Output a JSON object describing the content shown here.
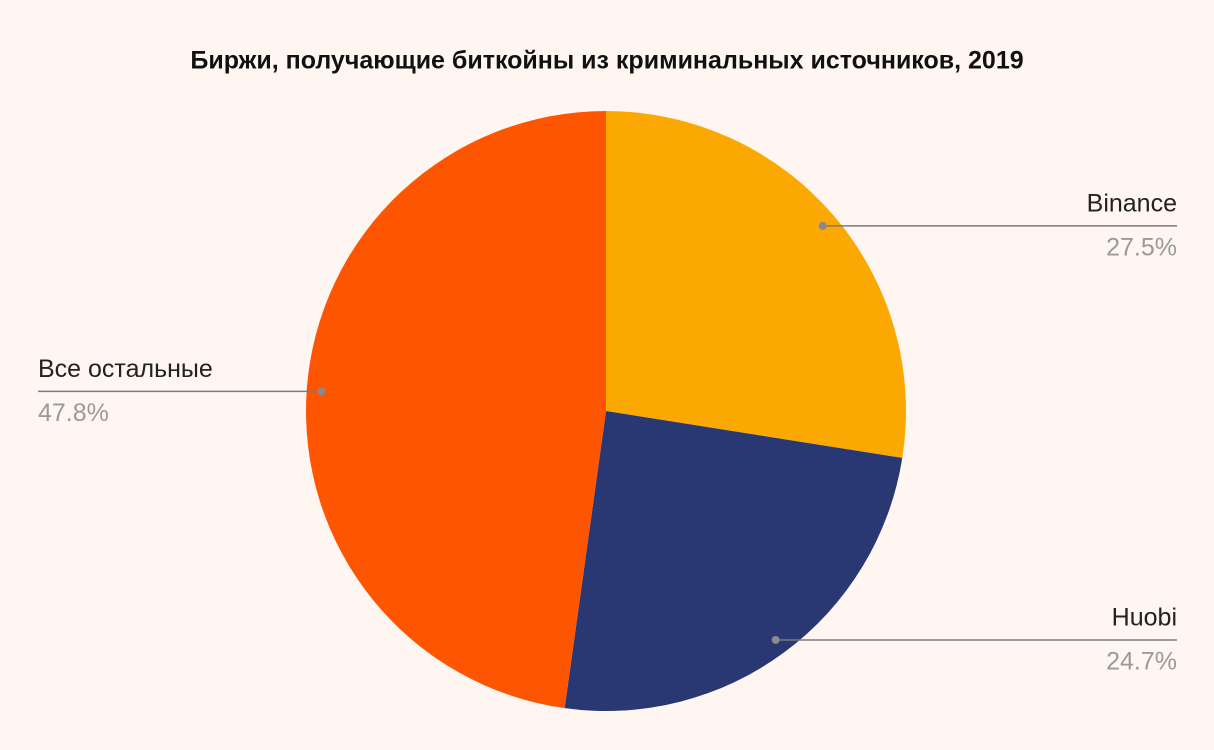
{
  "chart_data": {
    "type": "pie",
    "title": "Биржи, получающие биткойны из криминальных источников, 2019",
    "categories": [
      "Binance",
      "Huobi",
      "Все остальные"
    ],
    "values": [
      27.5,
      24.7,
      47.8
    ],
    "value_labels": [
      "27.5%",
      "24.7%",
      "47.8%"
    ],
    "colors": [
      "#fba902",
      "#293872",
      "#fe5501"
    ]
  }
}
